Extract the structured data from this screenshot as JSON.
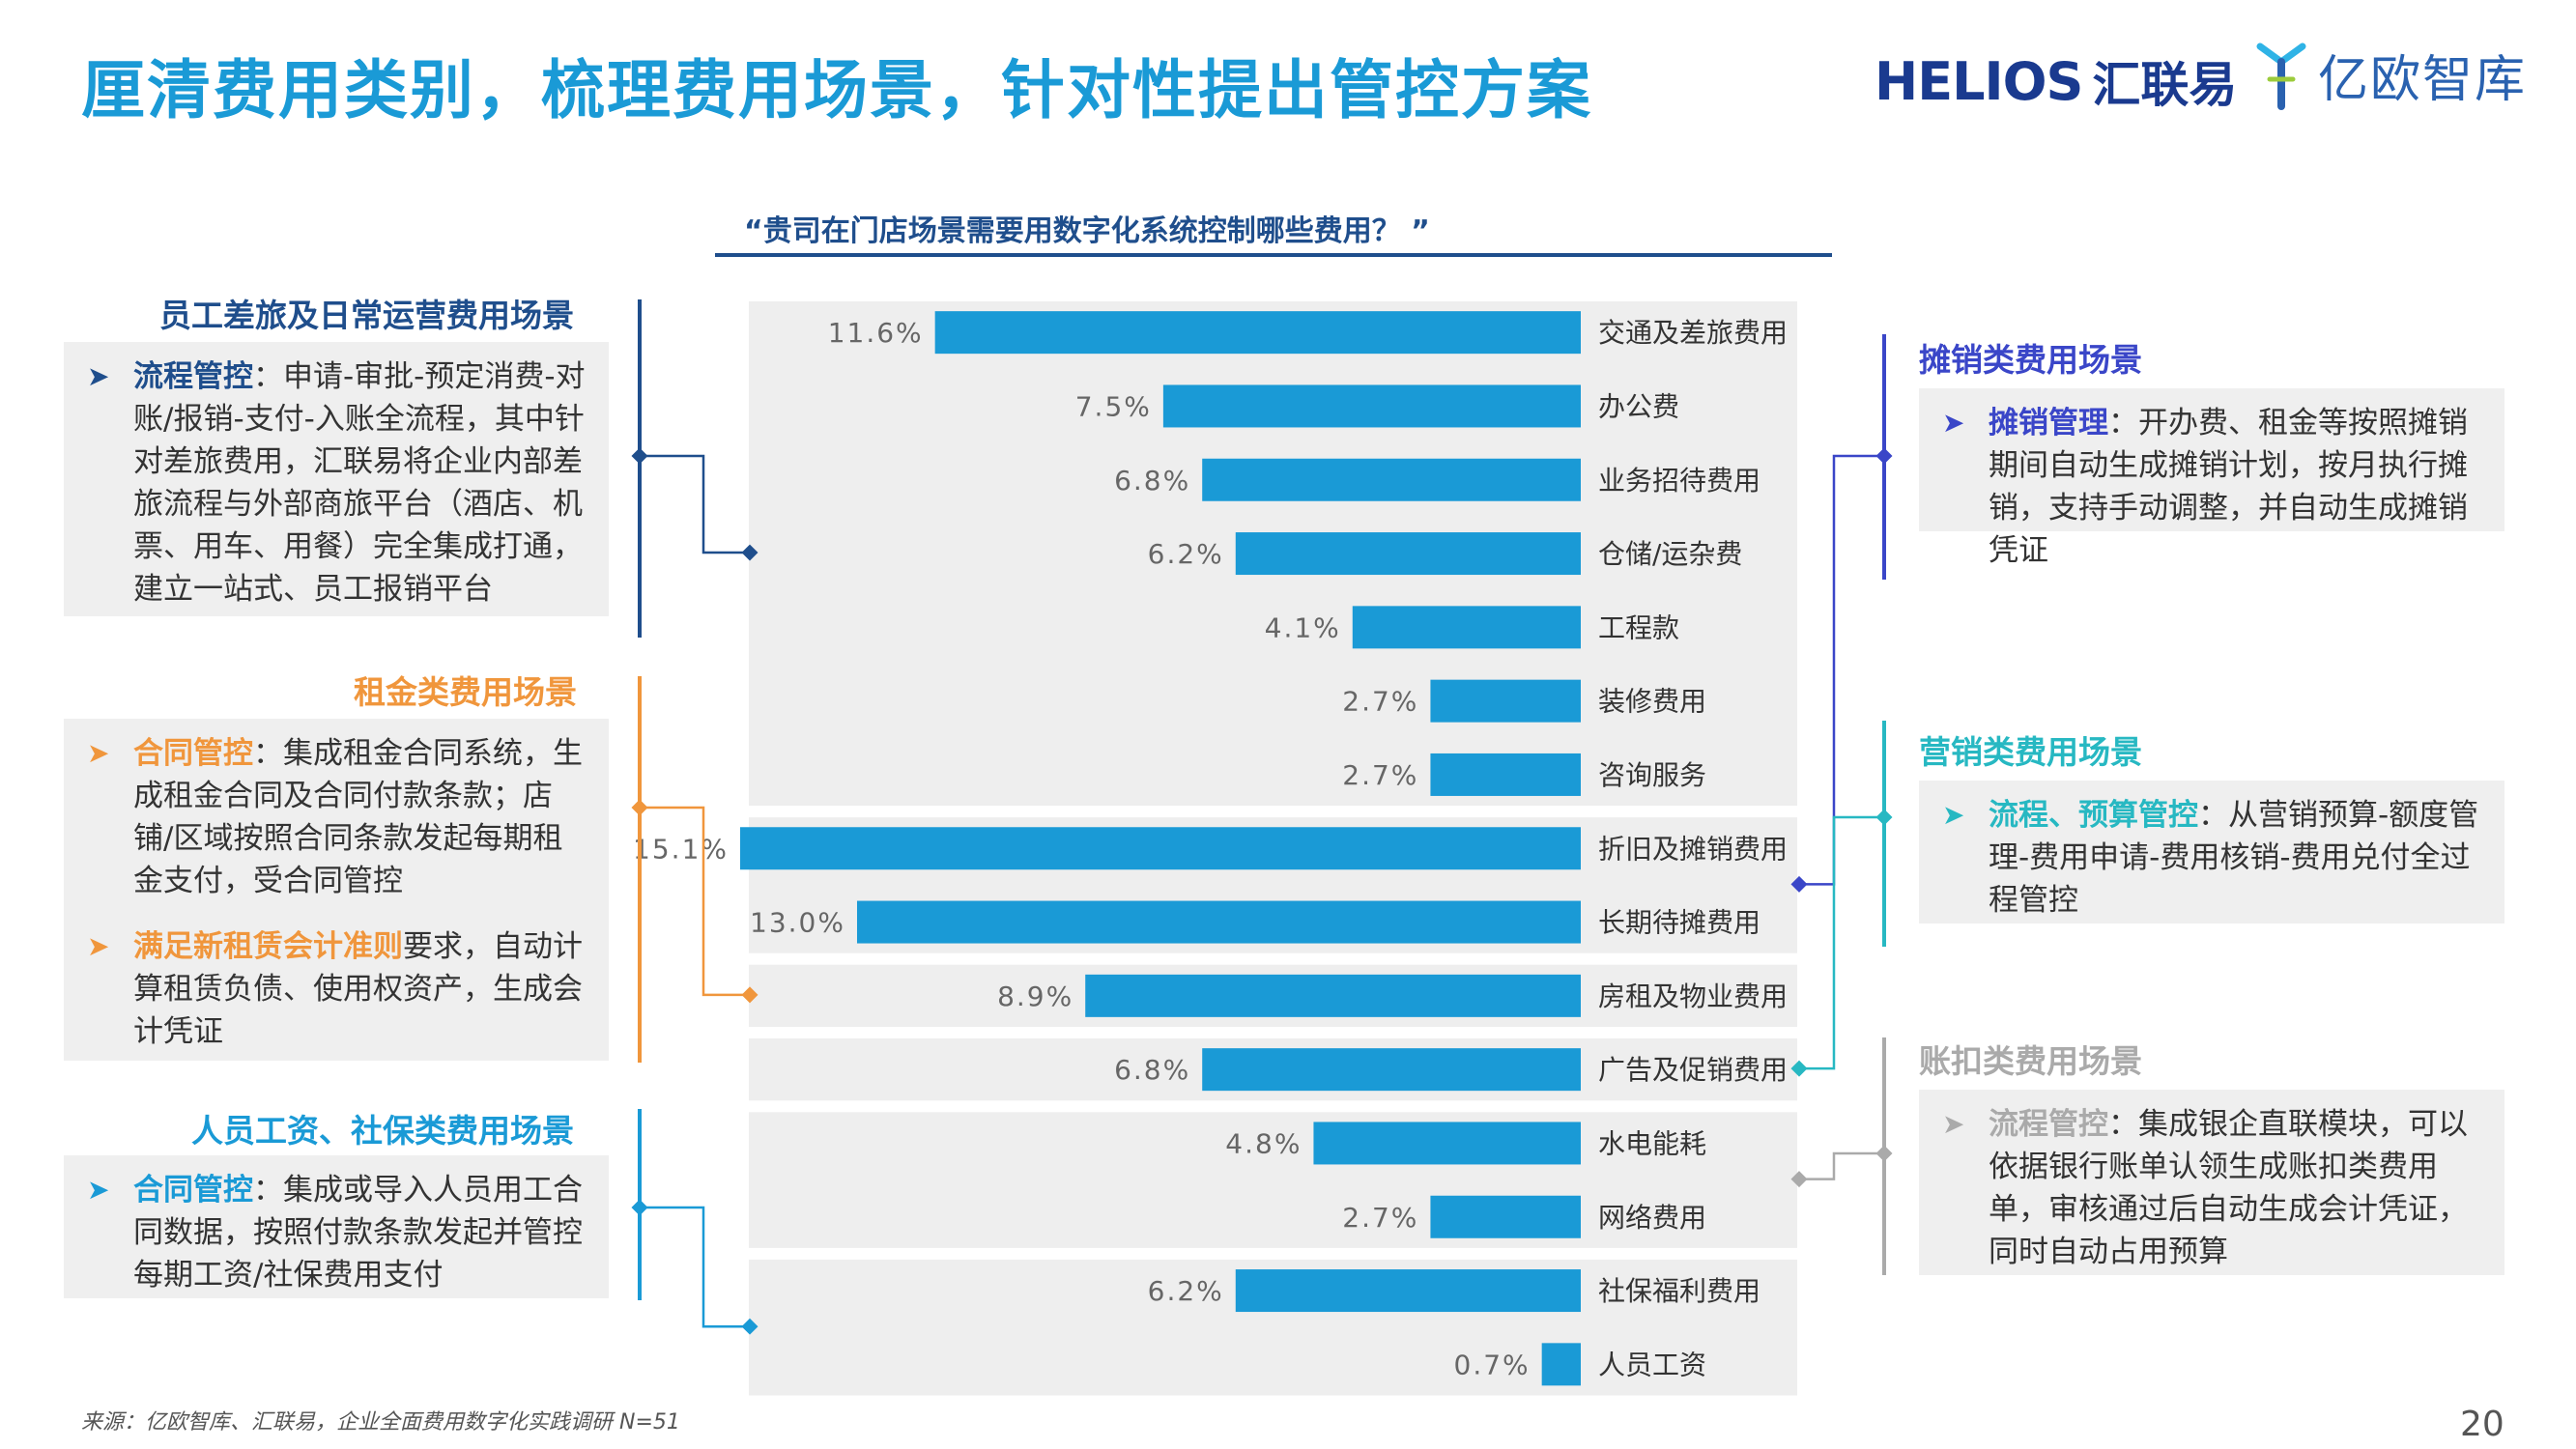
{
  "page": {
    "title": "厘清费用类别，梳理费用场景，针对性提出管控方案",
    "logos": {
      "helios_word": "HELIOS",
      "helios_cn": "汇联易",
      "yiou_cn": "亿欧智库"
    },
    "question": "“贵司在门店场景需要用数字化系统控制哪些费用？ ”",
    "source": "来源：亿欧智库、汇联易，企业全面费用数字化实践调研 N=51",
    "page_number": "20"
  },
  "colors": {
    "title": "#1a9ad6",
    "bar": "#1a9ad6",
    "group_bg": "#eeeeee",
    "travel": "#1f4e8c",
    "rent": "#f0963c",
    "salary": "#1a9ad6",
    "amort": "#3a46c8",
    "marketing": "#27b8c2",
    "deduct": "#aaaaaa"
  },
  "sections": {
    "travel": {
      "title": "员工差旅及日常运营费用场景",
      "items": [
        {
          "em": "流程管控",
          "text": "：申请-审批-预定消费-对账/报销-支付-入账全流程，其中针对差旅费用，汇联易将企业内部差旅流程与外部商旅平台（酒店、机票、用车、用餐）完全集成打通，建立一站式、员工报销平台"
        }
      ]
    },
    "rent": {
      "title": "租金类费用场景",
      "items": [
        {
          "em": "合同管控",
          "text": "：集成租金合同系统，生成租金合同及合同付款条款；店铺/区域按照合同条款发起每期租金支付，受合同管控"
        },
        {
          "em": "满足新租赁会计准则",
          "text": "要求，自动计算租赁负债、使用权资产，生成会计凭证"
        }
      ]
    },
    "salary": {
      "title": "人员工资、社保类费用场景",
      "items": [
        {
          "em": "合同管控",
          "text": "：集成或导入人员用工合同数据，按照付款条款发起并管控每期工资/社保费用支付"
        }
      ]
    },
    "amort": {
      "title": "摊销类费用场景",
      "items": [
        {
          "em": "摊销管理",
          "text": "：开办费、租金等按照摊销期间自动生成摊销计划，按月执行摊销，支持手动调整，并自动生成摊销凭证"
        }
      ]
    },
    "marketing": {
      "title": "营销类费用场景",
      "items": [
        {
          "em": "流程、预算管控",
          "text": "：从营销预算-额度管理-费用申请-费用核销-费用兑付全过程管控"
        }
      ]
    },
    "deduct": {
      "title": "账扣类费用场景",
      "items": [
        {
          "em": "流程管控",
          "text": "：集成银企直联模块，可以依据银行账单认领生成账扣类费用单，审核通过后自动生成会计凭证，同时自动占用预算"
        }
      ]
    }
  },
  "chart_data": {
    "type": "bar",
    "orientation": "horizontal",
    "title": "“贵司在门店场景需要用数字化系统控制哪些费用？ ”",
    "categories": [
      "交通及差旅费用",
      "办公费",
      "业务招待费用",
      "仓储/运杂费",
      "工程款",
      "装修费用",
      "咨询服务",
      "折旧及摊销费用",
      "长期待摊费用",
      "房租及物业费用",
      "广告及促销费用",
      "水电能耗",
      "网络费用",
      "社保福利费用",
      "人员工资"
    ],
    "values": [
      11.6,
      7.5,
      6.8,
      6.2,
      4.1,
      2.7,
      2.7,
      15.1,
      13.0,
      8.9,
      6.8,
      4.8,
      2.7,
      6.2,
      0.7
    ],
    "value_labels": [
      "11.6%",
      "7.5%",
      "6.8%",
      "6.2%",
      "4.1%",
      "2.7%",
      "2.7%",
      "15.1%",
      "13.0%",
      "8.9%",
      "6.8%",
      "4.8%",
      "2.7%",
      "6.2%",
      "0.7%"
    ],
    "unit": "%",
    "groups": [
      {
        "section": "travel",
        "start": 0,
        "end": 6
      },
      {
        "section": "amort",
        "start": 7,
        "end": 8
      },
      {
        "section": "rent",
        "start": 9,
        "end": 9
      },
      {
        "section": "marketing",
        "start": 10,
        "end": 10
      },
      {
        "section": "deduct",
        "start": 11,
        "end": 12
      },
      {
        "section": "salary",
        "start": 13,
        "end": 14
      }
    ],
    "bar_direction": "right-aligned, extending left",
    "grid": false,
    "legend": "none"
  }
}
